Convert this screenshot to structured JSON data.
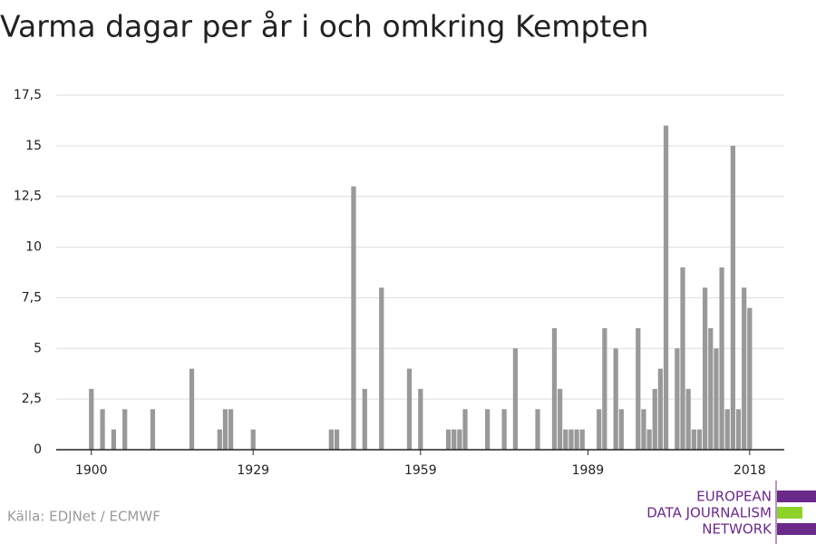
{
  "chart_data": {
    "type": "bar",
    "title": "Varma dagar per år i och omkring Kempten",
    "x": [
      1900,
      1902,
      1904,
      1906,
      1911,
      1918,
      1923,
      1924,
      1925,
      1929,
      1943,
      1944,
      1947,
      1949,
      1952,
      1957,
      1959,
      1964,
      1965,
      1966,
      1967,
      1971,
      1974,
      1976,
      1980,
      1983,
      1984,
      1985,
      1986,
      1987,
      1988,
      1991,
      1992,
      1994,
      1995,
      1998,
      1999,
      2000,
      2001,
      2002,
      2003,
      2005,
      2006,
      2007,
      2008,
      2009,
      2010,
      2011,
      2012,
      2013,
      2014,
      2015,
      2016,
      2017,
      2018
    ],
    "values": [
      3,
      2,
      1,
      2,
      2,
      4,
      1,
      2,
      2,
      1,
      1,
      1,
      13,
      3,
      8,
      4,
      3,
      1,
      1,
      1,
      2,
      2,
      2,
      5,
      2,
      6,
      3,
      1,
      1,
      1,
      1,
      2,
      6,
      5,
      2,
      6,
      2,
      1,
      3,
      4,
      16,
      5,
      9,
      3,
      1,
      1,
      8,
      6,
      5,
      9,
      2,
      15,
      2,
      8,
      7
    ],
    "color": "#999999",
    "xlim": [
      1893.7,
      2024.2
    ],
    "xticks": [
      1900,
      1929,
      1959,
      1989,
      2018
    ],
    "ylim": [
      0,
      17.5
    ],
    "yticks": [
      0,
      {
        "value": 2.5,
        "label": "2,5"
      },
      5,
      {
        "value": 7.5,
        "label": "7,5"
      },
      10,
      {
        "value": 12.5,
        "label": "12,5"
      },
      15,
      {
        "value": 17.5,
        "label": "17,5"
      }
    ],
    "grid": true,
    "source": "Källa: EDJNet / ECMWF",
    "logo": [
      "EUROPEAN",
      "DATA JOURNALISM",
      "NETWORK"
    ]
  }
}
